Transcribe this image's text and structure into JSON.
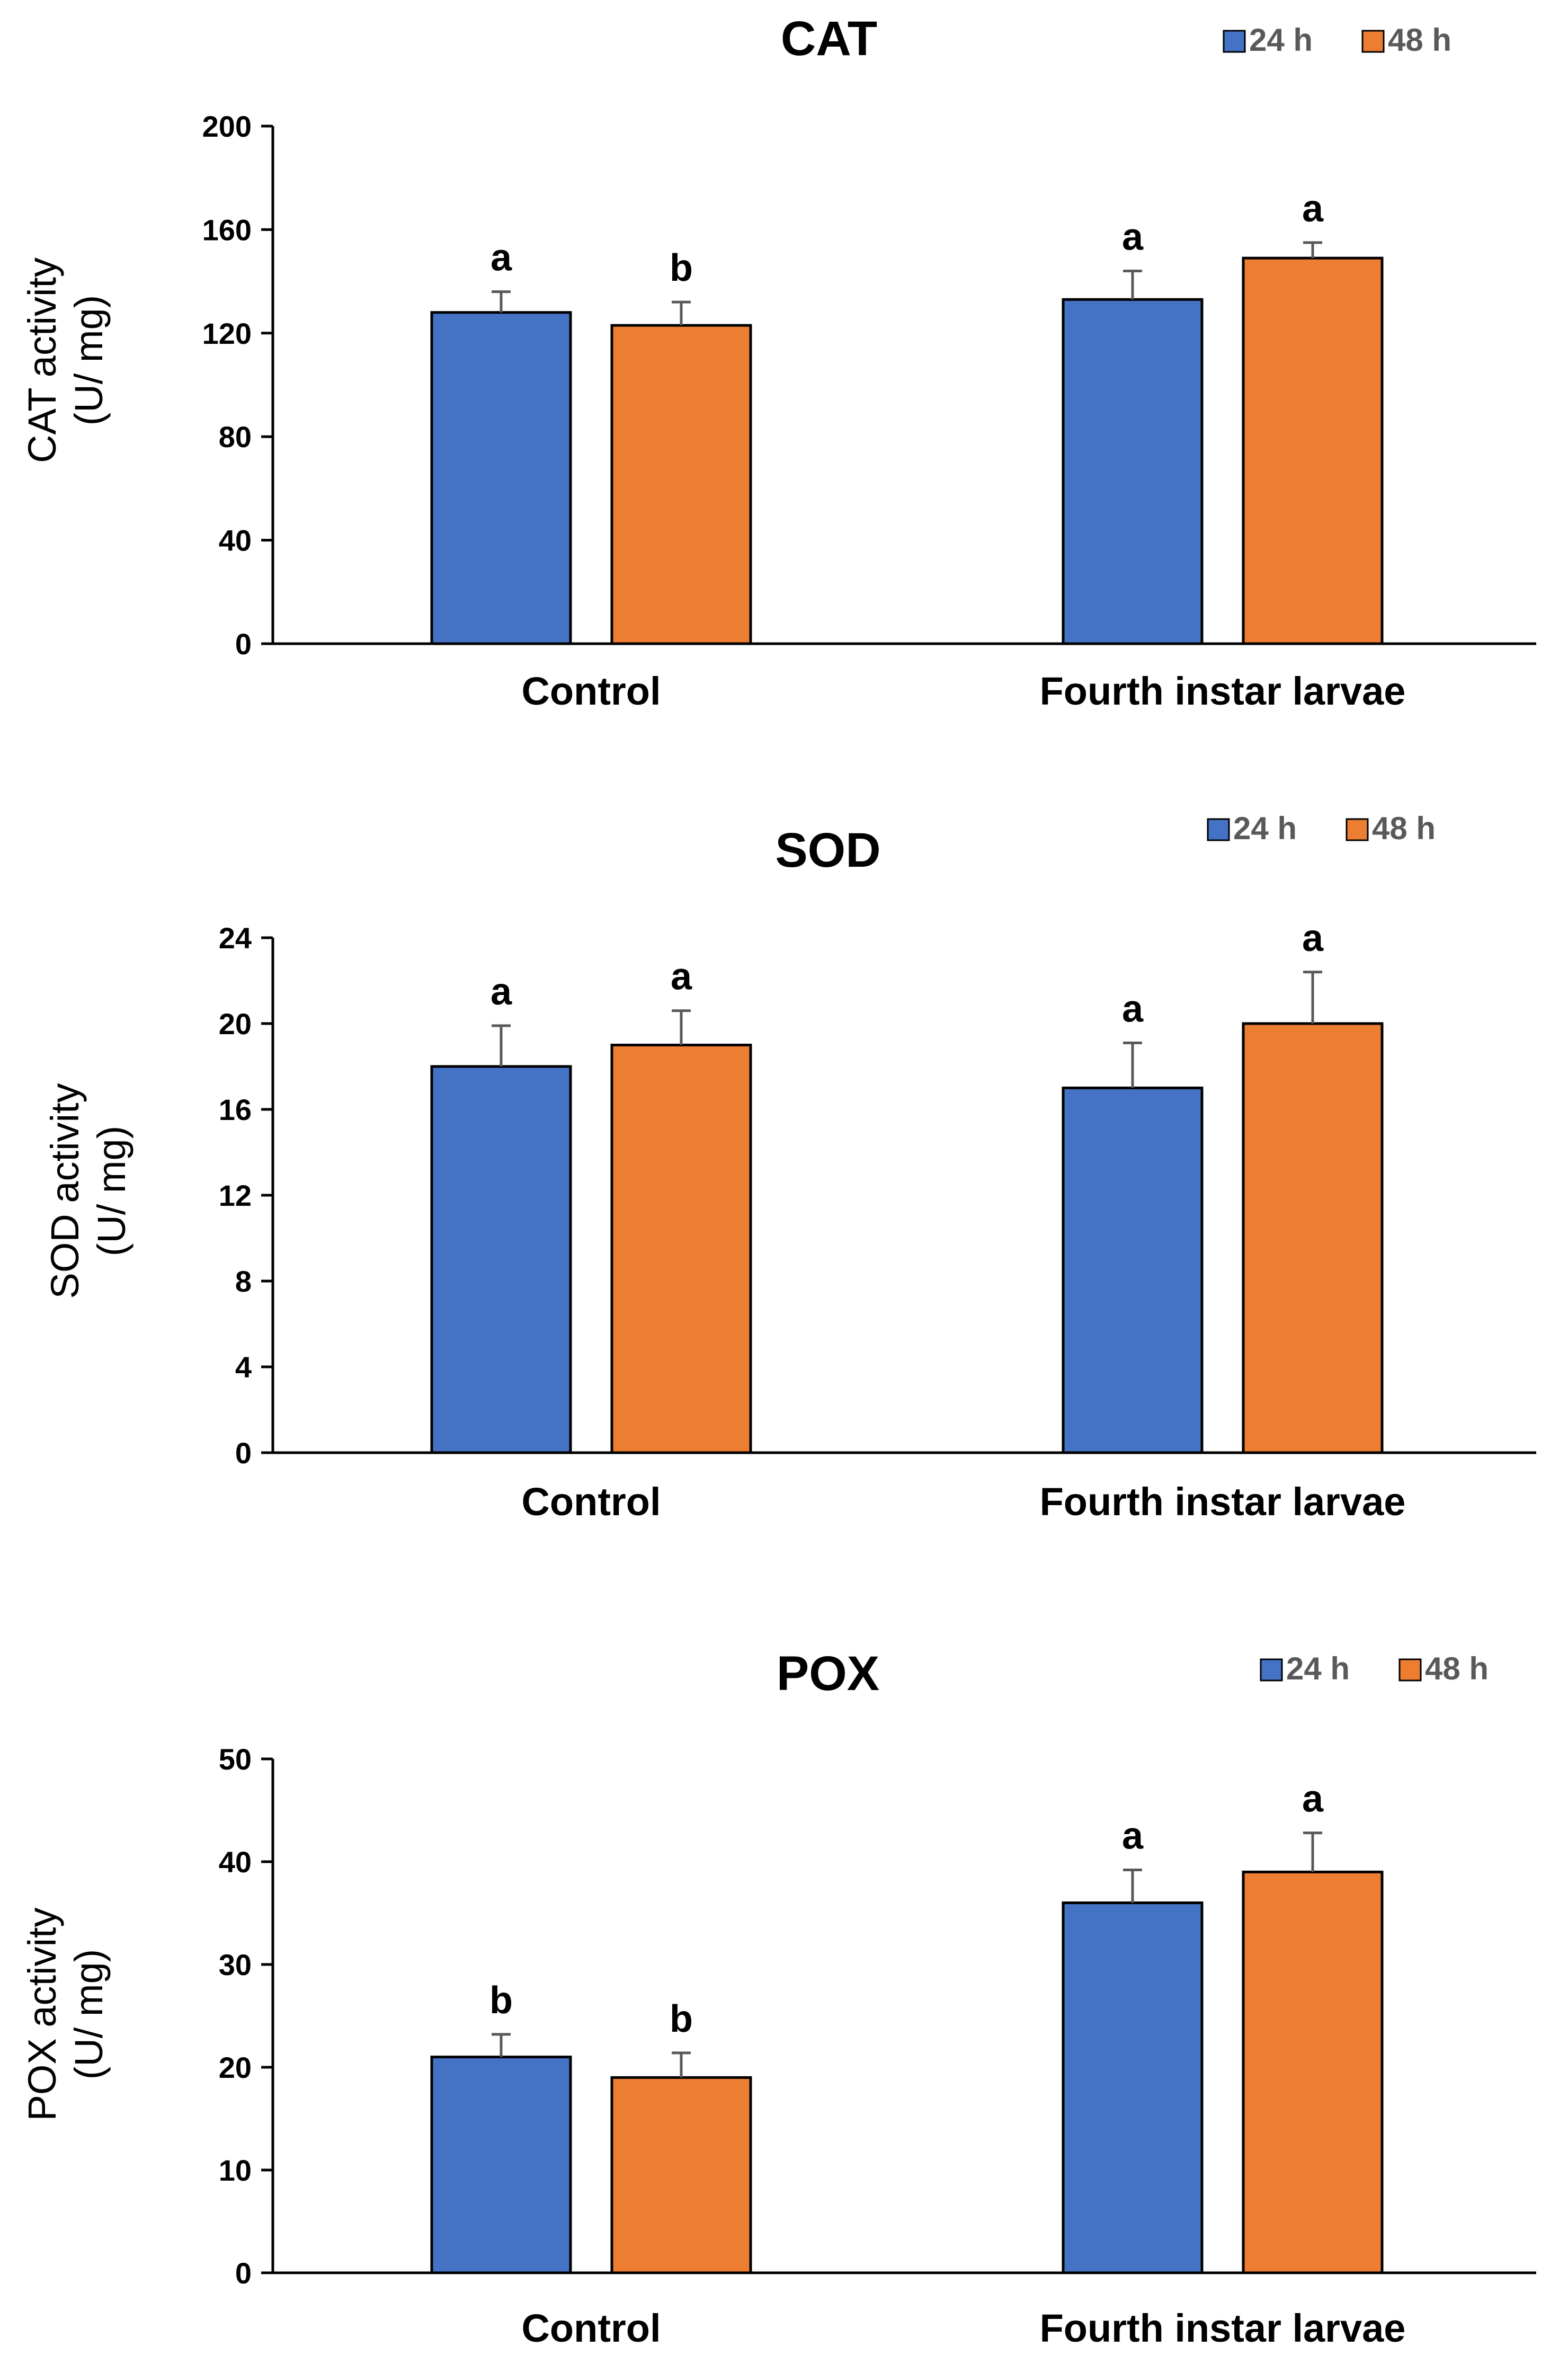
{
  "chart_data": [
    {
      "type": "bar",
      "title": "CAT",
      "xlabel": "",
      "ylabel": [
        "CAT activity",
        "(U/ mg)"
      ],
      "ylim": [
        0,
        200
      ],
      "yticks": [
        0,
        40,
        80,
        120,
        160,
        200
      ],
      "categories": [
        "Control",
        "Fourth instar larvae"
      ],
      "legend_position": "top-right",
      "series": [
        {
          "name": "24 h",
          "color": "#4472c4",
          "values": [
            128,
            133
          ],
          "errors": [
            8,
            11
          ],
          "letters": [
            "a",
            "a"
          ]
        },
        {
          "name": "48 h",
          "color": "#ed7d31",
          "values": [
            123,
            149
          ],
          "errors": [
            9,
            6
          ],
          "letters": [
            "b",
            "a"
          ]
        }
      ]
    },
    {
      "type": "bar",
      "title": "SOD",
      "xlabel": "",
      "ylabel": [
        "SOD activity",
        "(U/ mg)"
      ],
      "ylim": [
        0,
        24
      ],
      "yticks": [
        0,
        4,
        8,
        12,
        16,
        20,
        24
      ],
      "categories": [
        "Control",
        "Fourth instar larvae"
      ],
      "legend_position": "top-right",
      "series": [
        {
          "name": "24 h",
          "color": "#4472c4",
          "values": [
            18,
            17
          ],
          "errors": [
            1.9,
            2.1
          ],
          "letters": [
            "a",
            "a"
          ]
        },
        {
          "name": "48 h",
          "color": "#ed7d31",
          "values": [
            19,
            20
          ],
          "errors": [
            1.6,
            2.4
          ],
          "letters": [
            "a",
            "a"
          ]
        }
      ]
    },
    {
      "type": "bar",
      "title": "POX",
      "xlabel": "",
      "ylabel": [
        "POX activity",
        "(U/ mg)"
      ],
      "ylim": [
        0,
        50
      ],
      "yticks": [
        0,
        10,
        20,
        30,
        40,
        50
      ],
      "categories": [
        "Control",
        "Fourth instar larvae"
      ],
      "legend_position": "top-right",
      "series": [
        {
          "name": "24 h",
          "color": "#4472c4",
          "values": [
            21,
            36
          ],
          "errors": [
            2.2,
            3.2
          ],
          "letters": [
            "b",
            "a"
          ]
        },
        {
          "name": "48 h",
          "color": "#ed7d31",
          "values": [
            19,
            39
          ],
          "errors": [
            2.4,
            3.8
          ],
          "letters": [
            "b",
            "a"
          ]
        }
      ]
    }
  ]
}
